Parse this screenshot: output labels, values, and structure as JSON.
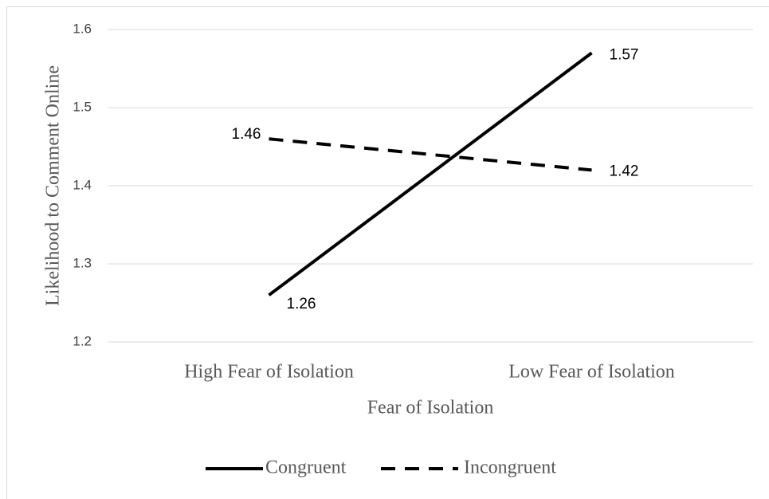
{
  "chart_data": {
    "type": "line",
    "xlabel": "Fear of Isolation",
    "ylabel": "Likelihood to Comment Online",
    "categories": [
      "High Fear of Isolation",
      "Low Fear of Isolation"
    ],
    "series": [
      {
        "name": "Congruent",
        "color": "#000000",
        "style": "solid",
        "values": [
          1.26,
          1.57
        ]
      },
      {
        "name": "Incongruent",
        "color": "#000000",
        "style": "dashed",
        "values": [
          1.46,
          1.42
        ]
      }
    ],
    "ylim": [
      1.2,
      1.6
    ],
    "yticks": [
      1.2,
      1.3,
      1.4,
      1.5,
      1.6
    ],
    "grid": true,
    "legend": "bottom"
  }
}
